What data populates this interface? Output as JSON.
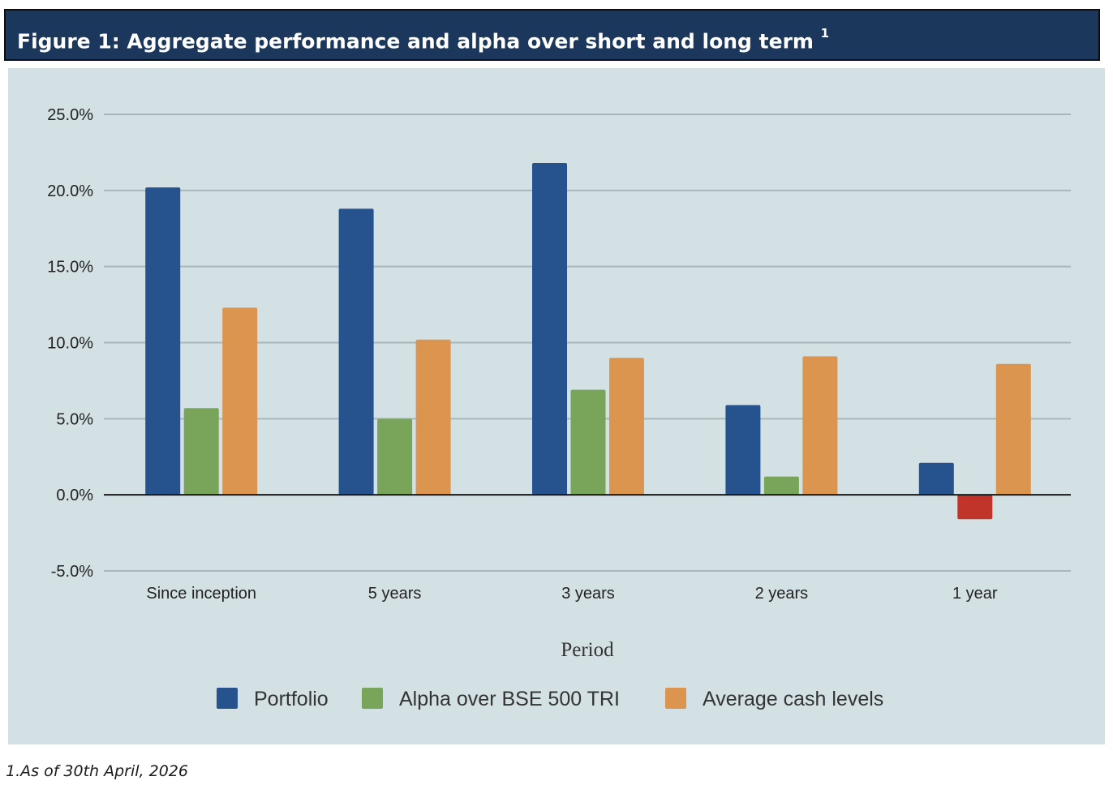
{
  "figure": {
    "title": "Figure 1:  Aggregate performance and alpha over short and long term",
    "title_superscript": "1"
  },
  "footnote": "1.As of 30th April, 2026",
  "colors": {
    "portfolio": "#26528d",
    "alpha": "#79a55a",
    "alpha_negative": "#c0342a",
    "cash": "#dc954f",
    "grid": "#a9b6ba",
    "zero_line": "#1a1a1a",
    "panel_bg": "#d3e0e4",
    "title_bg": "#1c375c"
  },
  "chart_data": {
    "type": "bar",
    "categories": [
      "Since inception",
      "5 years",
      "3 years",
      "2 years",
      "1 year"
    ],
    "series": [
      {
        "name": "Portfolio",
        "values": [
          20.2,
          18.8,
          21.8,
          5.9,
          2.1
        ]
      },
      {
        "name": "Alpha over BSE 500 TRI",
        "values": [
          5.7,
          5.0,
          6.9,
          1.2,
          -1.6
        ]
      },
      {
        "name": "Average cash levels",
        "values": [
          12.3,
          10.2,
          9.0,
          9.1,
          8.6
        ]
      }
    ],
    "xlabel": "Period",
    "ylabel": "",
    "ylim": [
      -5,
      25
    ],
    "yticks": [
      25,
      20,
      15,
      10,
      5,
      0,
      -5
    ],
    "ytick_labels": [
      "25.0%",
      "20.0%",
      "15.0%",
      "10.0%",
      "5.0%",
      "0.0%",
      "-5.0%"
    ],
    "grid": true,
    "legend_position": "bottom-center"
  }
}
